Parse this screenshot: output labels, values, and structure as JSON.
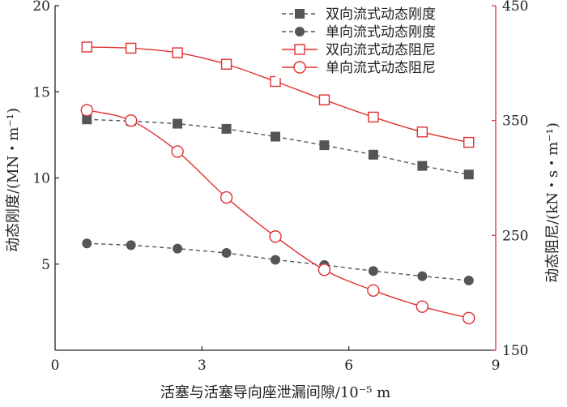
{
  "chart_data": {
    "type": "line",
    "xlabel": "活塞与活塞导向座泄漏间隙/10⁻⁵ m",
    "ylabel_left": "动态刚度/(MN・m⁻¹)",
    "ylabel_right": "动态阻尼/(kN・s・m⁻¹)",
    "xlim": [
      0,
      9
    ],
    "ylim_left": [
      0,
      20
    ],
    "ylim_right": [
      150,
      450
    ],
    "x_ticks": [
      "0",
      "3",
      "6",
      "9"
    ],
    "y_left_ticks": [
      "5",
      "10",
      "15",
      "20"
    ],
    "y_right_ticks": [
      "150",
      "250",
      "350",
      "450"
    ],
    "x": [
      0.65,
      1.55,
      2.5,
      3.5,
      4.5,
      5.5,
      6.5,
      7.5,
      8.45
    ],
    "legend_position": "top-right",
    "series": [
      {
        "name": "双向流式动态刚度",
        "axis": "left",
        "color": "#555555",
        "marker": "filled-square",
        "line": "dashed",
        "values": [
          13.4,
          13.3,
          13.15,
          12.85,
          12.4,
          11.9,
          11.35,
          10.7,
          10.2
        ]
      },
      {
        "name": "单向流式动态刚度",
        "axis": "left",
        "color": "#555555",
        "marker": "filled-circle",
        "line": "dashed",
        "values": [
          6.2,
          6.1,
          5.9,
          5.65,
          5.25,
          4.95,
          4.6,
          4.3,
          4.05
        ]
      },
      {
        "name": "双向流式动态阻尼",
        "axis": "right",
        "color": "#e03030",
        "marker": "open-square",
        "line": "solid",
        "values": [
          414,
          413,
          409,
          399,
          384,
          368,
          353,
          340,
          331
        ]
      },
      {
        "name": "单向流式动态阻尼",
        "axis": "right",
        "color": "#e03030",
        "marker": "open-circle",
        "line": "solid",
        "values": [
          359,
          350,
          323,
          283,
          249,
          220,
          202,
          188,
          178
        ]
      }
    ]
  }
}
